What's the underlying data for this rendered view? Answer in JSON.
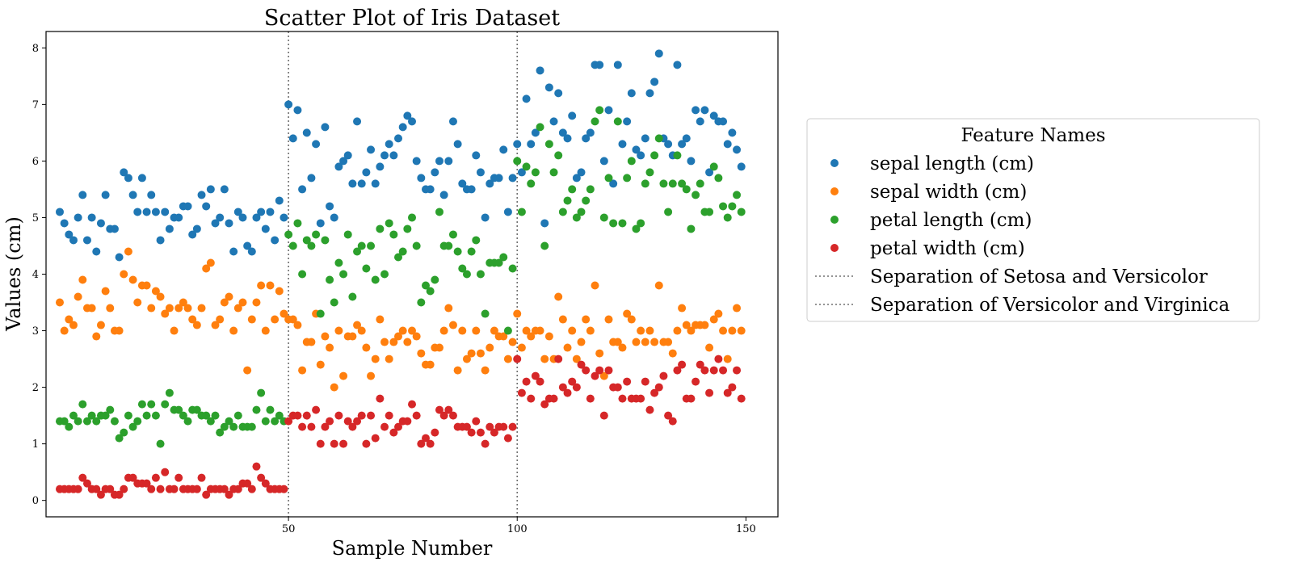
{
  "chart_data": {
    "type": "scatter",
    "title": "Scatter Plot of Iris Dataset",
    "xlabel": "Sample Number",
    "ylabel": "Values (cm)",
    "xlim": [
      -3,
      157
    ],
    "ylim": [
      -0.29,
      8.29
    ],
    "xticks": [
      50,
      100,
      150
    ],
    "yticks": [
      0,
      1,
      2,
      3,
      4,
      5,
      6,
      7,
      8
    ],
    "grid": false,
    "legend": {
      "title": "Feature Names",
      "placement": "outside-right"
    },
    "series": [
      {
        "name": "sepal length (cm)",
        "color": "#1f77b4",
        "values": [
          5.1,
          4.9,
          4.7,
          4.6,
          5.0,
          5.4,
          4.6,
          5.0,
          4.4,
          4.9,
          5.4,
          4.8,
          4.8,
          4.3,
          5.8,
          5.7,
          5.4,
          5.1,
          5.7,
          5.1,
          5.4,
          5.1,
          4.6,
          5.1,
          4.8,
          5.0,
          5.0,
          5.2,
          5.2,
          4.7,
          4.8,
          5.4,
          5.2,
          5.5,
          4.9,
          5.0,
          5.5,
          4.9,
          4.4,
          5.1,
          5.0,
          4.5,
          4.4,
          5.0,
          5.1,
          4.8,
          5.1,
          4.6,
          5.3,
          5.0,
          7.0,
          6.4,
          6.9,
          5.5,
          6.5,
          5.7,
          6.3,
          4.9,
          6.6,
          5.2,
          5.0,
          5.9,
          6.0,
          6.1,
          5.6,
          6.7,
          5.6,
          5.8,
          6.2,
          5.6,
          5.9,
          6.1,
          6.3,
          6.1,
          6.4,
          6.6,
          6.8,
          6.7,
          6.0,
          5.7,
          5.5,
          5.5,
          5.8,
          6.0,
          5.4,
          6.0,
          6.7,
          6.3,
          5.6,
          5.5,
          5.5,
          6.1,
          5.8,
          5.0,
          5.6,
          5.7,
          5.7,
          6.2,
          5.1,
          5.7,
          6.3,
          5.8,
          7.1,
          6.3,
          6.5,
          7.6,
          4.9,
          7.3,
          6.7,
          7.2,
          6.5,
          6.4,
          6.8,
          5.7,
          5.8,
          6.4,
          6.5,
          7.7,
          7.7,
          6.0,
          6.9,
          5.6,
          7.7,
          6.3,
          6.7,
          7.2,
          6.2,
          6.1,
          6.4,
          7.2,
          7.4,
          7.9,
          6.4,
          6.3,
          6.1,
          7.7,
          6.3,
          6.4,
          6.0,
          6.9,
          6.7,
          6.9,
          5.8,
          6.8,
          6.7,
          6.7,
          6.3,
          6.5,
          6.2,
          5.9
        ]
      },
      {
        "name": "sepal width (cm)",
        "color": "#ff7f0e",
        "values": [
          3.5,
          3.0,
          3.2,
          3.1,
          3.6,
          3.9,
          3.4,
          3.4,
          2.9,
          3.1,
          3.7,
          3.4,
          3.0,
          3.0,
          4.0,
          4.4,
          3.9,
          3.5,
          3.8,
          3.8,
          3.4,
          3.7,
          3.6,
          3.3,
          3.4,
          3.0,
          3.4,
          3.5,
          3.4,
          3.2,
          3.1,
          3.4,
          4.1,
          4.2,
          3.1,
          3.2,
          3.5,
          3.6,
          3.0,
          3.4,
          3.5,
          2.3,
          3.2,
          3.5,
          3.8,
          3.0,
          3.8,
          3.2,
          3.7,
          3.3,
          3.2,
          3.2,
          3.1,
          2.3,
          2.8,
          2.8,
          3.3,
          2.4,
          2.9,
          2.7,
          2.0,
          3.0,
          2.2,
          2.9,
          2.9,
          3.1,
          3.0,
          2.7,
          2.2,
          2.5,
          3.2,
          2.8,
          2.5,
          2.8,
          2.9,
          3.0,
          2.8,
          3.0,
          2.9,
          2.6,
          2.4,
          2.4,
          2.7,
          2.7,
          3.0,
          3.4,
          3.1,
          2.3,
          3.0,
          2.5,
          2.6,
          3.0,
          2.6,
          2.3,
          2.7,
          3.0,
          2.9,
          2.9,
          2.5,
          2.8,
          3.3,
          2.7,
          3.0,
          2.9,
          3.0,
          3.0,
          2.5,
          2.9,
          2.5,
          3.6,
          3.2,
          2.7,
          3.0,
          2.5,
          2.8,
          3.2,
          3.0,
          3.8,
          2.6,
          2.2,
          3.2,
          2.8,
          2.8,
          2.7,
          3.3,
          3.2,
          2.8,
          3.0,
          2.8,
          3.0,
          2.8,
          3.8,
          2.8,
          2.8,
          2.6,
          3.0,
          3.4,
          3.1,
          3.0,
          3.1,
          3.1,
          3.1,
          2.7,
          3.2,
          3.3,
          3.0,
          2.5,
          3.0,
          3.4,
          3.0
        ]
      },
      {
        "name": "petal length (cm)",
        "color": "#2ca02c",
        "values": [
          1.4,
          1.4,
          1.3,
          1.5,
          1.4,
          1.7,
          1.4,
          1.5,
          1.4,
          1.5,
          1.5,
          1.6,
          1.4,
          1.1,
          1.2,
          1.5,
          1.3,
          1.4,
          1.7,
          1.5,
          1.7,
          1.5,
          1.0,
          1.7,
          1.9,
          1.6,
          1.6,
          1.5,
          1.4,
          1.6,
          1.6,
          1.5,
          1.5,
          1.4,
          1.5,
          1.2,
          1.3,
          1.4,
          1.3,
          1.5,
          1.3,
          1.3,
          1.3,
          1.6,
          1.9,
          1.4,
          1.6,
          1.4,
          1.5,
          1.4,
          4.7,
          4.5,
          4.9,
          4.0,
          4.6,
          4.5,
          4.7,
          3.3,
          4.6,
          3.9,
          3.5,
          4.2,
          4.0,
          4.7,
          3.6,
          4.4,
          4.5,
          4.1,
          4.5,
          3.9,
          4.8,
          4.0,
          4.9,
          4.7,
          4.3,
          4.4,
          4.8,
          5.0,
          4.5,
          3.5,
          3.8,
          3.7,
          3.9,
          5.1,
          4.5,
          4.5,
          4.7,
          4.4,
          4.1,
          4.0,
          4.4,
          4.6,
          4.0,
          3.3,
          4.2,
          4.2,
          4.2,
          4.3,
          3.0,
          4.1,
          6.0,
          5.1,
          5.9,
          5.6,
          5.8,
          6.6,
          4.5,
          6.3,
          5.8,
          6.1,
          5.1,
          5.3,
          5.5,
          5.0,
          5.1,
          5.3,
          5.5,
          6.7,
          6.9,
          5.0,
          5.7,
          4.9,
          6.7,
          4.9,
          5.7,
          6.0,
          4.8,
          4.9,
          5.6,
          5.8,
          6.1,
          6.4,
          5.6,
          5.1,
          5.6,
          6.1,
          5.6,
          5.5,
          4.8,
          5.4,
          5.6,
          5.1,
          5.1,
          5.9,
          5.7,
          5.2,
          5.0,
          5.2,
          5.4,
          5.1
        ]
      },
      {
        "name": "petal width (cm)",
        "color": "#d62728",
        "values": [
          0.2,
          0.2,
          0.2,
          0.2,
          0.2,
          0.4,
          0.3,
          0.2,
          0.2,
          0.1,
          0.2,
          0.2,
          0.1,
          0.1,
          0.2,
          0.4,
          0.4,
          0.3,
          0.3,
          0.3,
          0.2,
          0.4,
          0.2,
          0.5,
          0.2,
          0.2,
          0.4,
          0.2,
          0.2,
          0.2,
          0.2,
          0.4,
          0.1,
          0.2,
          0.2,
          0.2,
          0.2,
          0.1,
          0.2,
          0.2,
          0.3,
          0.3,
          0.2,
          0.6,
          0.4,
          0.3,
          0.2,
          0.2,
          0.2,
          0.2,
          1.4,
          1.5,
          1.5,
          1.3,
          1.5,
          1.3,
          1.6,
          1.0,
          1.3,
          1.4,
          1.0,
          1.5,
          1.0,
          1.4,
          1.3,
          1.4,
          1.5,
          1.0,
          1.5,
          1.1,
          1.8,
          1.3,
          1.5,
          1.2,
          1.3,
          1.4,
          1.4,
          1.7,
          1.5,
          1.0,
          1.1,
          1.0,
          1.2,
          1.6,
          1.5,
          1.6,
          1.5,
          1.3,
          1.3,
          1.3,
          1.2,
          1.4,
          1.2,
          1.0,
          1.3,
          1.2,
          1.3,
          1.3,
          1.1,
          1.3,
          2.5,
          1.9,
          2.1,
          1.8,
          2.2,
          2.1,
          1.7,
          1.8,
          1.8,
          2.5,
          2.0,
          1.9,
          2.1,
          2.0,
          2.4,
          2.3,
          1.8,
          2.2,
          2.3,
          1.5,
          2.3,
          2.0,
          2.0,
          1.8,
          2.1,
          1.8,
          1.8,
          1.8,
          2.1,
          1.6,
          1.9,
          2.0,
          2.2,
          1.5,
          1.4,
          2.3,
          2.4,
          1.8,
          1.8,
          2.1,
          2.4,
          2.3,
          1.9,
          2.3,
          2.5,
          2.3,
          1.9,
          2.0,
          2.3,
          1.8
        ]
      }
    ],
    "vlines": [
      {
        "x": 50,
        "label": "Separation of Setosa and Versicolor",
        "color": "#707070",
        "style": "dotted"
      },
      {
        "x": 100,
        "label": "Separation of Versicolor and Virginica",
        "color": "#707070",
        "style": "dotted"
      }
    ]
  }
}
